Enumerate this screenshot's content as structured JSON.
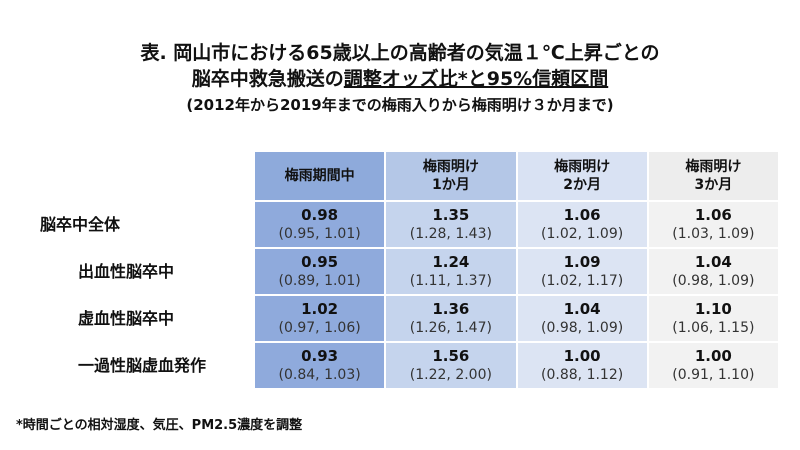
{
  "header": {
    "title_line1": "表. 岡山市における65歳以上の高齢者の気温１℃上昇ごとの",
    "title_line2_plain": "脳卒中救急搬送の",
    "title_line2_underlined": "調整オッズ比*と95%信頼区間",
    "subtitle": "(2012年から2019年までの梅雨入りから梅雨明け３か月まで)"
  },
  "table": {
    "columns": [
      [
        "梅雨期間中"
      ],
      [
        "梅雨明け",
        "1か月"
      ],
      [
        "梅雨明け",
        "2か月"
      ],
      [
        "梅雨明け",
        "3か月"
      ]
    ],
    "rows": [
      {
        "label": "脳卒中全体",
        "cells": [
          [
            "0.98",
            "(0.95, 1.01)"
          ],
          [
            "1.35",
            "(1.28, 1.43)"
          ],
          [
            "1.06",
            "(1.02, 1.09)"
          ],
          [
            "1.06",
            "(1.03, 1.09)"
          ]
        ]
      },
      {
        "label": "出血性脳卒中",
        "cells": [
          [
            "0.95",
            "(0.89, 1.01)"
          ],
          [
            "1.24",
            "(1.11, 1.37)"
          ],
          [
            "1.09",
            "(1.02, 1.17)"
          ],
          [
            "1.04",
            "(0.98, 1.09)"
          ]
        ]
      },
      {
        "label": "虚血性脳卒中",
        "cells": [
          [
            "1.02",
            "(0.97, 1.06)"
          ],
          [
            "1.36",
            "(1.26, 1.47)"
          ],
          [
            "1.04",
            "(0.98, 1.09)"
          ],
          [
            "1.10",
            "(1.06, 1.15)"
          ]
        ]
      },
      {
        "label": "一過性脳虚血発作",
        "cells": [
          [
            "0.93",
            "(0.84, 1.03)"
          ],
          [
            "1.56",
            "(1.22, 2.00)"
          ],
          [
            "1.00",
            "(0.88, 1.12)"
          ],
          [
            "1.00",
            "(0.91, 1.10)"
          ]
        ]
      }
    ]
  },
  "footnote": "*時間ごとの相対湿度、気圧、PM2.5濃度を調整"
}
